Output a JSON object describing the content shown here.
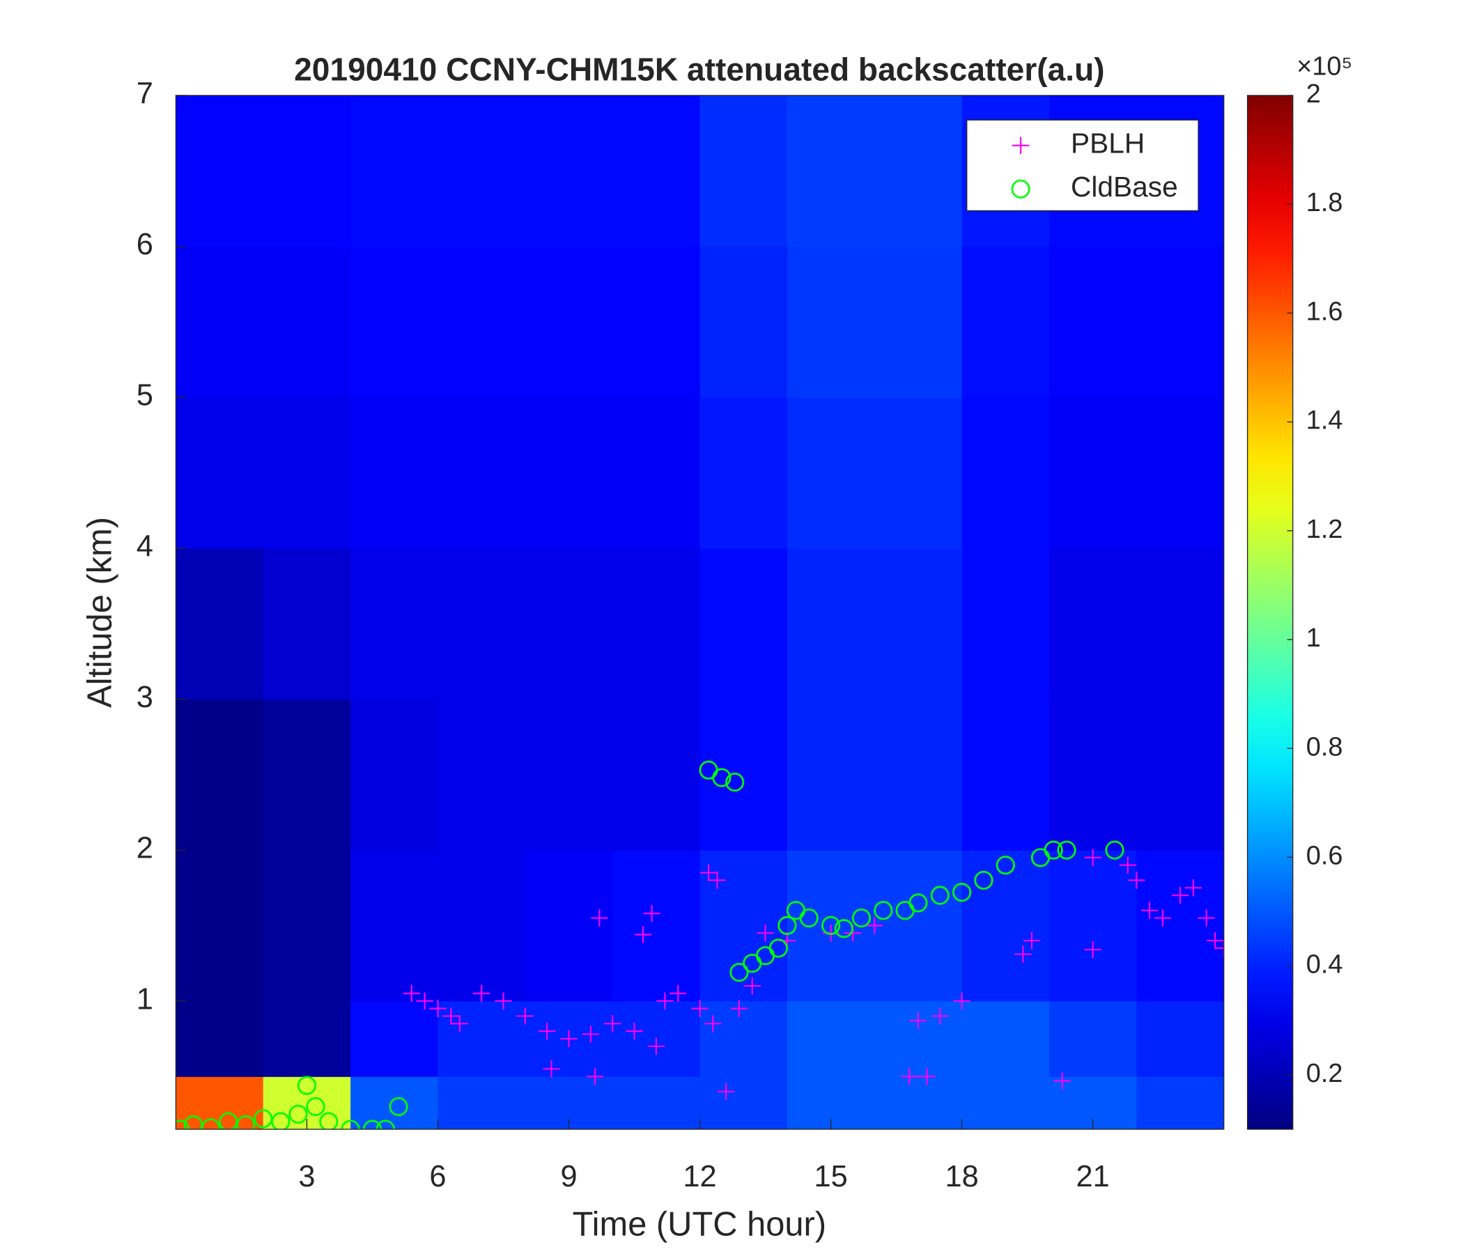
{
  "chart_data": {
    "type": "heatmap",
    "title": "20190410 CCNY-CHM15K attenuated backscatter(a.u)",
    "x_label": "Time (UTC hour)",
    "y_label": "Altitude (km)",
    "xlim": [
      0,
      24
    ],
    "xticks": [
      3,
      6,
      9,
      12,
      15,
      18,
      21
    ],
    "ylim": [
      0.15,
      7
    ],
    "yticks": [
      1,
      2,
      3,
      4,
      5,
      6,
      7
    ],
    "colormap": "jet",
    "clim": [
      0.1,
      2
    ],
    "cticks": [
      0.2,
      0.4,
      0.6,
      0.8,
      1,
      1.2,
      1.4,
      1.6,
      1.8,
      2
    ],
    "colorbar_exponent_label": "×10⁵",
    "x_edges": [
      0,
      2,
      4,
      6,
      8,
      10,
      12,
      14,
      16,
      18,
      20,
      22,
      24
    ],
    "y_edges": [
      0.15,
      0.5,
      1,
      2,
      3,
      4,
      5,
      6,
      7
    ],
    "z": [
      [
        1.6,
        1.2,
        0.5,
        0.45,
        0.45,
        0.45,
        0.45,
        0.5,
        0.5,
        0.5,
        0.5,
        0.45
      ],
      [
        0.12,
        0.15,
        0.35,
        0.4,
        0.4,
        0.4,
        0.45,
        0.5,
        0.5,
        0.5,
        0.45,
        0.4
      ],
      [
        0.12,
        0.15,
        0.3,
        0.3,
        0.32,
        0.35,
        0.4,
        0.45,
        0.45,
        0.4,
        0.38,
        0.35
      ],
      [
        0.12,
        0.15,
        0.28,
        0.3,
        0.3,
        0.3,
        0.35,
        0.4,
        0.4,
        0.35,
        0.3,
        0.3
      ],
      [
        0.2,
        0.25,
        0.3,
        0.3,
        0.3,
        0.3,
        0.35,
        0.4,
        0.4,
        0.35,
        0.3,
        0.3
      ],
      [
        0.3,
        0.3,
        0.32,
        0.32,
        0.32,
        0.32,
        0.38,
        0.42,
        0.42,
        0.35,
        0.32,
        0.32
      ],
      [
        0.32,
        0.32,
        0.34,
        0.34,
        0.34,
        0.34,
        0.4,
        0.44,
        0.44,
        0.36,
        0.34,
        0.34
      ],
      [
        0.34,
        0.34,
        0.35,
        0.35,
        0.35,
        0.35,
        0.42,
        0.45,
        0.45,
        0.38,
        0.35,
        0.35
      ]
    ],
    "legend": "upper right",
    "series": [
      {
        "name": "PBLH",
        "color": "#ff00ff",
        "marker": "+",
        "x": [
          5.4,
          5.7,
          6,
          6.3,
          6.5,
          7,
          7.5,
          8,
          8.5,
          8.6,
          9,
          9.5,
          9.6,
          9.7,
          10,
          10.5,
          10.7,
          10.9,
          11,
          11.2,
          11.5,
          12,
          12.2,
          12.3,
          12.4,
          12.6,
          12.9,
          13.2,
          13.5,
          14,
          15,
          15.5,
          16,
          16.8,
          17,
          17.2,
          17.5,
          18,
          19.4,
          19.6,
          20.3,
          21,
          21,
          21.8,
          22,
          22.3,
          22.6,
          23,
          23.3,
          23.6,
          23.8,
          24
        ],
        "y": [
          1.05,
          1.0,
          0.95,
          0.9,
          0.85,
          1.05,
          1.0,
          0.9,
          0.8,
          0.55,
          0.75,
          0.78,
          0.5,
          1.55,
          0.85,
          0.8,
          1.44,
          1.58,
          0.7,
          1.0,
          1.05,
          0.95,
          1.85,
          0.85,
          1.8,
          0.4,
          0.95,
          1.1,
          1.45,
          1.4,
          1.45,
          1.45,
          1.5,
          0.5,
          0.87,
          0.5,
          0.9,
          1.0,
          1.31,
          1.4,
          0.47,
          1.34,
          1.95,
          1.9,
          1.8,
          1.6,
          1.55,
          1.7,
          1.75,
          1.55,
          1.4,
          1.35
        ]
      },
      {
        "name": "CldBase",
        "color": "#00ff00",
        "marker": "o",
        "x": [
          0.1,
          0.4,
          0.8,
          1.2,
          1.6,
          2,
          2.4,
          2.8,
          3,
          3.2,
          3.5,
          4,
          4.5,
          4.8,
          5.1,
          12.2,
          12.5,
          12.8,
          12.9,
          13.2,
          13.5,
          13.8,
          14,
          14.2,
          14.5,
          15,
          15.3,
          15.7,
          16.2,
          16.7,
          17,
          17.5,
          18,
          18.5,
          19,
          19.8,
          20.1,
          20.4,
          21.5
        ],
        "y": [
          0.15,
          0.18,
          0.16,
          0.2,
          0.18,
          0.22,
          0.2,
          0.25,
          0.44,
          0.3,
          0.2,
          0.15,
          0.15,
          0.15,
          0.3,
          2.53,
          2.48,
          2.45,
          1.19,
          1.25,
          1.3,
          1.35,
          1.5,
          1.6,
          1.55,
          1.5,
          1.48,
          1.55,
          1.6,
          1.6,
          1.65,
          1.7,
          1.72,
          1.8,
          1.9,
          1.95,
          2.0,
          2.0,
          2.0
        ]
      }
    ]
  }
}
